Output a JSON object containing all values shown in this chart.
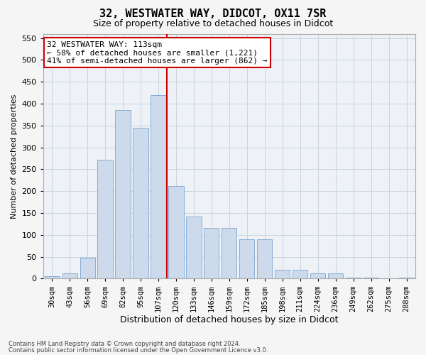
{
  "title1": "32, WESTWATER WAY, DIDCOT, OX11 7SR",
  "title2": "Size of property relative to detached houses in Didcot",
  "xlabel": "Distribution of detached houses by size in Didcot",
  "ylabel": "Number of detached properties",
  "categories": [
    "30sqm",
    "43sqm",
    "56sqm",
    "69sqm",
    "82sqm",
    "95sqm",
    "107sqm",
    "120sqm",
    "133sqm",
    "146sqm",
    "159sqm",
    "172sqm",
    "185sqm",
    "198sqm",
    "211sqm",
    "224sqm",
    "236sqm",
    "249sqm",
    "262sqm",
    "275sqm",
    "288sqm"
  ],
  "values": [
    5,
    12,
    48,
    272,
    385,
    345,
    420,
    212,
    142,
    116,
    116,
    90,
    90,
    20,
    20,
    12,
    12,
    3,
    3,
    1,
    3
  ],
  "bar_color": "#ccdaeb",
  "bar_edge_color": "#8aaed4",
  "vline_color": "#cc0000",
  "vline_pos": 6.5,
  "annotation_text": "32 WESTWATER WAY: 113sqm\n← 58% of detached houses are smaller (1,221)\n41% of semi-detached houses are larger (862) →",
  "annotation_box_facecolor": "#ffffff",
  "annotation_box_edgecolor": "#cc0000",
  "grid_color": "#c8d4e0",
  "bg_color": "#eef2f7",
  "fig_facecolor": "#f5f5f5",
  "footer1": "Contains HM Land Registry data © Crown copyright and database right 2024.",
  "footer2": "Contains public sector information licensed under the Open Government Licence v3.0.",
  "ylim": [
    0,
    560
  ],
  "yticks": [
    0,
    50,
    100,
    150,
    200,
    250,
    300,
    350,
    400,
    450,
    500,
    550
  ],
  "title1_fontsize": 11,
  "title2_fontsize": 9,
  "ylabel_fontsize": 8,
  "xlabel_fontsize": 9,
  "tick_fontsize": 8,
  "xtick_fontsize": 7.5,
  "annot_fontsize": 8
}
